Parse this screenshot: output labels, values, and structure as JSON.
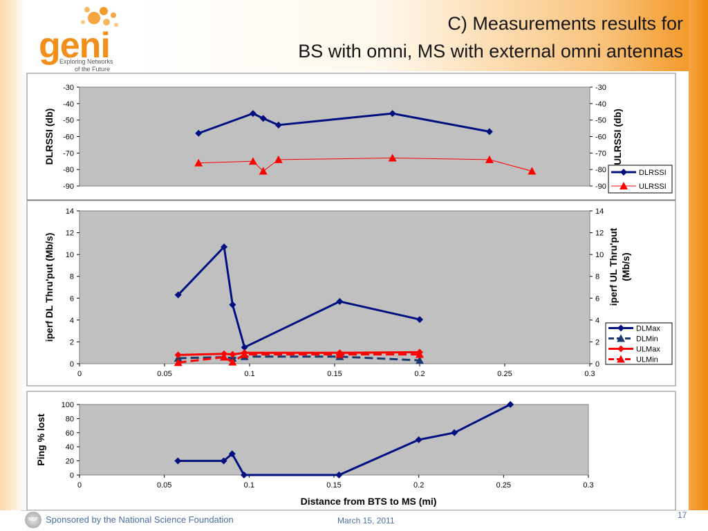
{
  "slide": {
    "title_line1": "C)  Measurements results for",
    "title_line2": "BS with omni, MS with external omni antennas",
    "logo_text": "geni",
    "logo_tagline_1": "Exploring Networks",
    "logo_tagline_2": "of the Future",
    "sponsor": "Sponsored by the National Science Foundation",
    "date": "March 15, 2011",
    "page_number": "17",
    "nsf_logo_text": "NSF",
    "colors": {
      "accent": "#f28e1a",
      "series_blue": "#000f80",
      "series_red": "#ff0000",
      "plot_bg": "#c0c0c0"
    }
  },
  "chart_data": [
    {
      "type": "line",
      "ylabel_left": "DLRSSI (db)",
      "ylabel_right": "ULRSSI (db)",
      "ylim": [
        -90,
        -30
      ],
      "yticks": [
        -30,
        -40,
        -50,
        -60,
        -70,
        -80,
        -90
      ],
      "xlim": [
        0,
        0.3
      ],
      "show_xticks": false,
      "legend_placement": "right",
      "series": [
        {
          "name": "DLRSSI",
          "color": "#000f80",
          "dash": "solid",
          "marker": "diamond",
          "width": 3,
          "x": [
            0.07,
            0.102,
            0.108,
            0.117,
            0.184,
            0.241
          ],
          "y": [
            -58,
            -46,
            -49,
            -53,
            -46,
            -57
          ]
        },
        {
          "name": "ULRSSI",
          "color": "#ff0000",
          "dash": "solid",
          "marker": "triangle",
          "width": 1,
          "x": [
            0.07,
            0.102,
            0.108,
            0.117,
            0.184,
            0.241,
            0.266
          ],
          "y": [
            -76,
            -75,
            -81,
            -74,
            -73,
            -74,
            -81
          ]
        }
      ]
    },
    {
      "type": "line",
      "ylabel_left": "iperf DL Thru'put  (Mb/s)",
      "ylabel_right_1": "iperf UL Thru'put",
      "ylabel_right_2": "(Mb/s)",
      "ylim": [
        0,
        14
      ],
      "yticks": [
        14,
        12,
        10,
        8,
        6,
        4,
        2,
        0
      ],
      "xlim": [
        0,
        0.3
      ],
      "xticks": [
        "0",
        "0.05",
        "0.1",
        "0.15",
        "0.2",
        "0.25",
        "0.3"
      ],
      "legend_placement": "right",
      "series": [
        {
          "name": "DLMax",
          "color": "#000f80",
          "dash": "solid",
          "marker": "diamond",
          "width": 3,
          "x": [
            0.058,
            0.085,
            0.09,
            0.097,
            0.153,
            0.2
          ],
          "y": [
            6.3,
            10.7,
            5.4,
            1.5,
            5.7,
            4.05
          ]
        },
        {
          "name": "DLMin",
          "color": "#1a3a6e",
          "dash": "dashed",
          "marker": "triangle",
          "width": 3,
          "x": [
            0.058,
            0.085,
            0.09,
            0.097,
            0.153,
            0.2
          ],
          "y": [
            0.5,
            0.6,
            0.5,
            0.65,
            0.65,
            0.3
          ]
        },
        {
          "name": "ULMax",
          "color": "#ff0000",
          "dash": "solid",
          "marker": "diamond",
          "width": 3,
          "x": [
            0.058,
            0.085,
            0.09,
            0.097,
            0.153,
            0.2
          ],
          "y": [
            0.8,
            0.9,
            0.85,
            1.0,
            1.0,
            1.05
          ]
        },
        {
          "name": "ULMin",
          "color": "#ff0000",
          "dash": "dashed",
          "marker": "triangle",
          "width": 3,
          "x": [
            0.058,
            0.085,
            0.09,
            0.097,
            0.153,
            0.2
          ],
          "y": [
            0.1,
            0.6,
            0.15,
            0.85,
            0.85,
            0.85
          ]
        }
      ]
    },
    {
      "type": "line",
      "ylabel": "Ping % lost",
      "xlabel": "Distance from BTS to MS  (mi)",
      "ylim": [
        0,
        100
      ],
      "yticks": [
        100,
        80,
        60,
        40,
        20,
        0
      ],
      "xlim": [
        0,
        0.3
      ],
      "xticks": [
        "0",
        "0.05",
        "0.1",
        "0.15",
        "0.2",
        "0.25",
        "0.3"
      ],
      "series": [
        {
          "color": "#000f80",
          "dash": "solid",
          "marker": "diamond",
          "width": 3,
          "x": [
            0.058,
            0.085,
            0.09,
            0.097,
            0.153,
            0.2,
            0.221,
            0.254
          ],
          "y": [
            20,
            20,
            30,
            0,
            0,
            50,
            60,
            100
          ]
        }
      ]
    }
  ]
}
